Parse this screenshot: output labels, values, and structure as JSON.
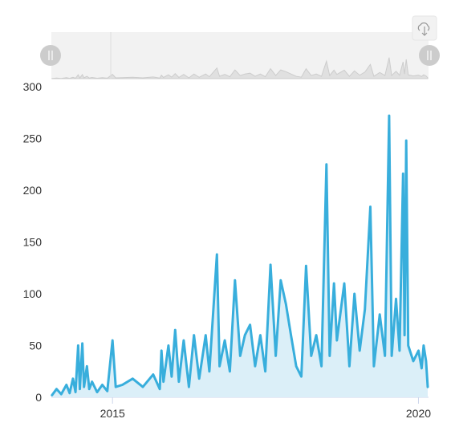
{
  "chart_data": {
    "type": "area",
    "title": "",
    "xlabel": "",
    "ylabel": "",
    "x_range": [
      "2014-01-01",
      "2020-03-01"
    ],
    "ylim": [
      0,
      300
    ],
    "y_ticks": [
      "0",
      "50",
      "100",
      "150",
      "200",
      "250",
      "300"
    ],
    "x_ticks": [
      {
        "label": "2015",
        "date": "2015-01-01"
      },
      {
        "label": "2020",
        "date": "2020-01-01"
      }
    ],
    "grid": false,
    "legend": "none",
    "series": [
      {
        "color": "#38aedc",
        "fill": "#dbeff8",
        "points": [
          [
            "2014-01-05",
            2
          ],
          [
            "2014-02-01",
            8
          ],
          [
            "2014-03-01",
            3
          ],
          [
            "2014-04-01",
            12
          ],
          [
            "2014-04-20",
            4
          ],
          [
            "2014-05-10",
            18
          ],
          [
            "2014-05-25",
            5
          ],
          [
            "2014-06-10",
            50
          ],
          [
            "2014-06-20",
            8
          ],
          [
            "2014-07-05",
            52
          ],
          [
            "2014-07-15",
            10
          ],
          [
            "2014-08-01",
            30
          ],
          [
            "2014-08-15",
            8
          ],
          [
            "2014-09-01",
            15
          ],
          [
            "2014-10-01",
            5
          ],
          [
            "2014-11-01",
            12
          ],
          [
            "2014-12-01",
            6
          ],
          [
            "2015-01-01",
            55
          ],
          [
            "2015-01-20",
            10
          ],
          [
            "2015-03-01",
            12
          ],
          [
            "2015-05-01",
            18
          ],
          [
            "2015-07-01",
            10
          ],
          [
            "2015-09-01",
            22
          ],
          [
            "2015-10-10",
            8
          ],
          [
            "2015-10-20",
            45
          ],
          [
            "2015-11-01",
            15
          ],
          [
            "2015-12-01",
            50
          ],
          [
            "2015-12-20",
            20
          ],
          [
            "2016-01-10",
            65
          ],
          [
            "2016-02-01",
            15
          ],
          [
            "2016-03-01",
            55
          ],
          [
            "2016-04-01",
            10
          ],
          [
            "2016-05-01",
            60
          ],
          [
            "2016-06-01",
            18
          ],
          [
            "2016-07-10",
            60
          ],
          [
            "2016-08-01",
            25
          ],
          [
            "2016-09-15",
            138
          ],
          [
            "2016-10-01",
            30
          ],
          [
            "2016-11-01",
            55
          ],
          [
            "2016-12-01",
            25
          ],
          [
            "2017-01-01",
            113
          ],
          [
            "2017-02-01",
            40
          ],
          [
            "2017-03-01",
            60
          ],
          [
            "2017-04-01",
            70
          ],
          [
            "2017-05-01",
            30
          ],
          [
            "2017-06-01",
            60
          ],
          [
            "2017-07-01",
            25
          ],
          [
            "2017-08-01",
            128
          ],
          [
            "2017-09-01",
            40
          ],
          [
            "2017-10-01",
            113
          ],
          [
            "2017-11-01",
            90
          ],
          [
            "2017-12-01",
            60
          ],
          [
            "2018-01-01",
            30
          ],
          [
            "2018-02-01",
            20
          ],
          [
            "2018-03-01",
            127
          ],
          [
            "2018-04-01",
            40
          ],
          [
            "2018-05-01",
            60
          ],
          [
            "2018-06-01",
            30
          ],
          [
            "2018-07-01",
            225
          ],
          [
            "2018-07-20",
            40
          ],
          [
            "2018-08-15",
            110
          ],
          [
            "2018-09-01",
            55
          ],
          [
            "2018-10-15",
            110
          ],
          [
            "2018-11-15",
            30
          ],
          [
            "2018-12-15",
            100
          ],
          [
            "2019-01-15",
            45
          ],
          [
            "2019-02-15",
            85
          ],
          [
            "2019-03-20",
            184
          ],
          [
            "2019-04-10",
            30
          ],
          [
            "2019-05-15",
            80
          ],
          [
            "2019-06-15",
            40
          ],
          [
            "2019-07-10",
            272
          ],
          [
            "2019-07-25",
            40
          ],
          [
            "2019-08-20",
            95
          ],
          [
            "2019-09-10",
            45
          ],
          [
            "2019-10-01",
            216
          ],
          [
            "2019-10-10",
            60
          ],
          [
            "2019-10-20",
            248
          ],
          [
            "2019-11-01",
            50
          ],
          [
            "2019-12-01",
            35
          ],
          [
            "2020-01-01",
            45
          ],
          [
            "2020-01-20",
            28
          ],
          [
            "2020-02-01",
            50
          ],
          [
            "2020-02-15",
            35
          ],
          [
            "2020-02-25",
            10
          ]
        ]
      }
    ]
  },
  "navigator": {
    "enabled": true,
    "series_color": "#cccccc",
    "mask_color": "#f2f2f2",
    "handle_color": "#cccccc"
  },
  "toolbar": {
    "export_icon": "cloud-download-icon"
  }
}
